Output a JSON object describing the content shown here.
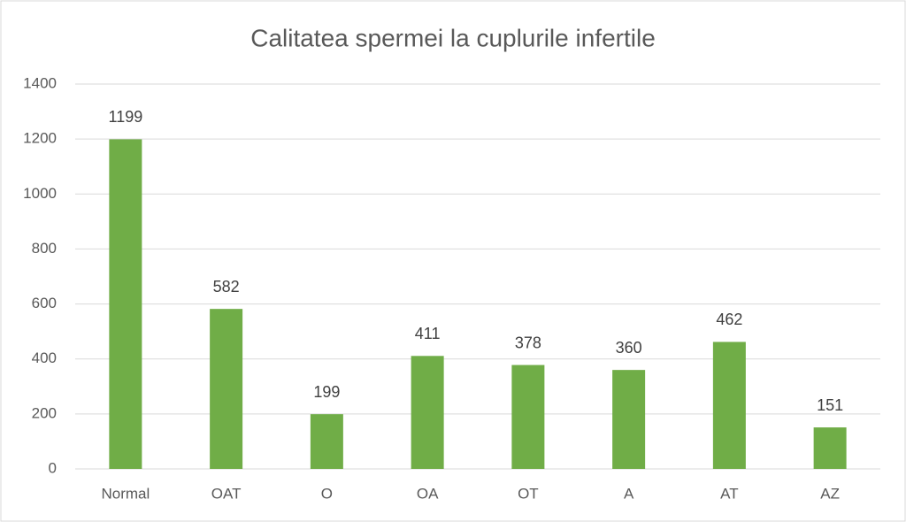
{
  "chart_data": {
    "type": "bar",
    "title": "Calitatea spermei la cuplurile infertile",
    "categories": [
      "Normal",
      "OAT",
      "O",
      "OA",
      "OT",
      "A",
      "AT",
      "AZ"
    ],
    "values": [
      1199,
      582,
      199,
      411,
      378,
      360,
      462,
      151
    ],
    "color": "#70ad47",
    "ylim": [
      0,
      1400
    ],
    "yticks": [
      0,
      200,
      400,
      600,
      800,
      1000,
      1200,
      1400
    ],
    "grid": true
  }
}
